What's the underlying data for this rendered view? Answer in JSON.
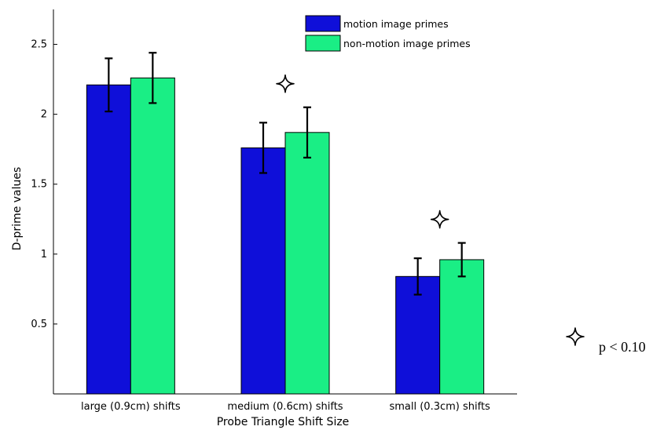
{
  "chart_data": {
    "type": "bar",
    "title": "",
    "xlabel": "Probe Triangle Shift Size",
    "ylabel": "D-prime values",
    "categories": [
      "large (0.9cm) shifts",
      "medium (0.6cm) shifts",
      "small (0.3cm) shifts"
    ],
    "ylim": [
      0,
      2.75
    ],
    "yticks": [
      0.5,
      1,
      1.5,
      2,
      2.5
    ],
    "ytick_labels": [
      "0.5",
      "1",
      "1.5",
      "2",
      "2.5"
    ],
    "grid": false,
    "legend_position": "top-right",
    "series": [
      {
        "name": "motion image primes",
        "color": "#0f0fd9",
        "values": [
          2.21,
          1.76,
          0.84
        ],
        "error": [
          0.19,
          0.18,
          0.13
        ]
      },
      {
        "name": "non-motion image primes",
        "color": "#1aee85",
        "values": [
          2.26,
          1.87,
          0.96
        ],
        "error": [
          0.18,
          0.18,
          0.12
        ]
      }
    ],
    "significance_markers": [
      {
        "category_index": 1,
        "symbol": "four-point-star-icon"
      },
      {
        "category_index": 2,
        "symbol": "four-point-star-icon"
      }
    ],
    "annotation": {
      "symbol": "four-point-star-icon",
      "text": "p < 0.10"
    }
  }
}
